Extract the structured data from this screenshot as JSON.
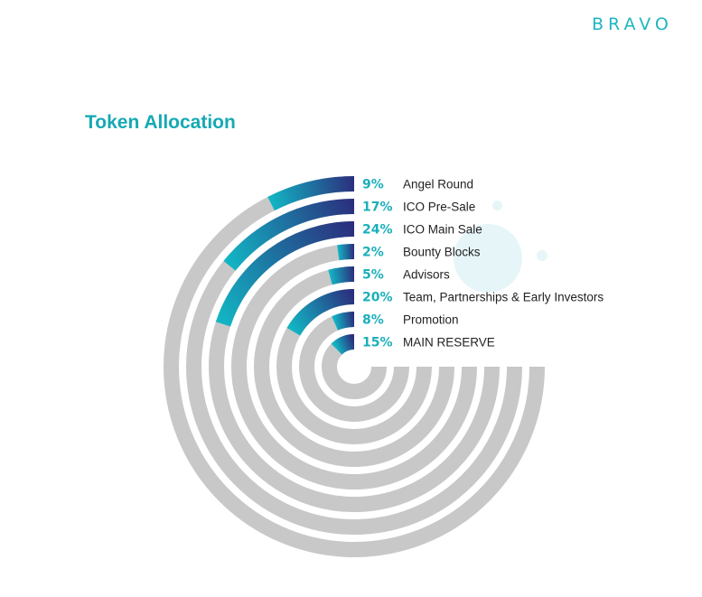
{
  "brand": "BRAVO",
  "title": "Token Allocation",
  "colors": {
    "track": "#c8c8c8",
    "gradient_start": "#12b5c4",
    "gradient_end": "#2b2f7d",
    "percent_text": "#1aafbb",
    "brand": "#1fb6c1"
  },
  "chart_data": {
    "type": "radial-bar",
    "title": "Token Allocation",
    "unit": "%",
    "series": [
      {
        "label": "Angel Round",
        "value": 9,
        "value_label": "9%"
      },
      {
        "label": "ICO Pre-Sale",
        "value": 17,
        "value_label": "17%"
      },
      {
        "label": "ICO Main Sale",
        "value": 24,
        "value_label": "24%"
      },
      {
        "label": "Bounty Blocks",
        "value": 2,
        "value_label": "2%"
      },
      {
        "label": "Advisors",
        "value": 5,
        "value_label": "5%"
      },
      {
        "label": "Team, Partnerships & Early Investors",
        "value": 20,
        "value_label": "20%"
      },
      {
        "label": "Promotion",
        "value": 8,
        "value_label": "8%"
      },
      {
        "label": "MAIN RESERVE",
        "value": 15,
        "value_label": "15%"
      }
    ]
  }
}
